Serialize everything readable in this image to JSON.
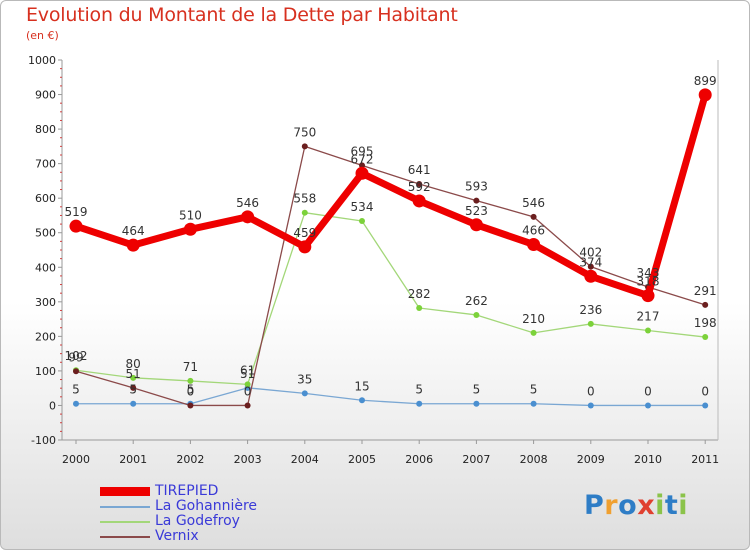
{
  "title": "Evolution du Montant de la Dette par Habitant",
  "subtitle": "(en €)",
  "logo": {
    "text": "Proxiti",
    "colors": [
      "#2e7dc6",
      "#f0a030",
      "#2e7dc6",
      "#e04030",
      "#8bc34a",
      "#2e7dc6",
      "#8bc34a"
    ]
  },
  "chart_data": {
    "type": "line",
    "categories": [
      "2000",
      "2001",
      "2002",
      "2003",
      "2004",
      "2005",
      "2006",
      "2007",
      "2008",
      "2009",
      "2010",
      "2011"
    ],
    "ylim": [
      -100,
      1000
    ],
    "yticks": [
      "-100",
      "0",
      "100",
      "200",
      "300",
      "400",
      "500",
      "600",
      "700",
      "800",
      "900",
      "1000"
    ],
    "grid": false,
    "legend": "bottom-left",
    "series": [
      {
        "name": "TIREPIED",
        "color": "#ee0000",
        "marker": "#ee0000",
        "thick": true,
        "values": [
          519,
          464,
          510,
          546,
          459,
          672,
          592,
          523,
          466,
          374,
          318,
          899
        ],
        "labels": [
          "519",
          "464",
          "510",
          "546",
          "459",
          "672",
          "592",
          "523",
          "466",
          "374",
          "318",
          "899"
        ]
      },
      {
        "name": "La Gohannière",
        "color": "#7aa7d3",
        "marker": "#4a8fd0",
        "thick": false,
        "values": [
          5,
          5,
          5,
          51,
          35,
          15,
          5,
          5,
          5,
          0,
          0,
          0
        ],
        "labels": [
          "5",
          "5",
          "5",
          "51",
          "35",
          "15",
          "5",
          "5",
          "5",
          "0",
          "0",
          "0"
        ]
      },
      {
        "name": "La Godefroy",
        "color": "#a3d779",
        "marker": "#7cd23a",
        "thick": false,
        "values": [
          102,
          80,
          71,
          61,
          558,
          534,
          282,
          262,
          210,
          236,
          217,
          198
        ],
        "labels": [
          "102",
          "80",
          "71",
          "61",
          "558",
          "534",
          "282",
          "262",
          "210",
          "236",
          "217",
          "198"
        ]
      },
      {
        "name": "Vernix",
        "color": "#8b4a4a",
        "marker": "#6b1f1f",
        "thick": false,
        "values": [
          99,
          51,
          0,
          0,
          750,
          695,
          641,
          593,
          546,
          402,
          343,
          291
        ],
        "labels": [
          "99",
          "51",
          "0",
          "0",
          "750",
          "695",
          "641",
          "593",
          "546",
          "402",
          "343",
          "291"
        ]
      }
    ]
  }
}
